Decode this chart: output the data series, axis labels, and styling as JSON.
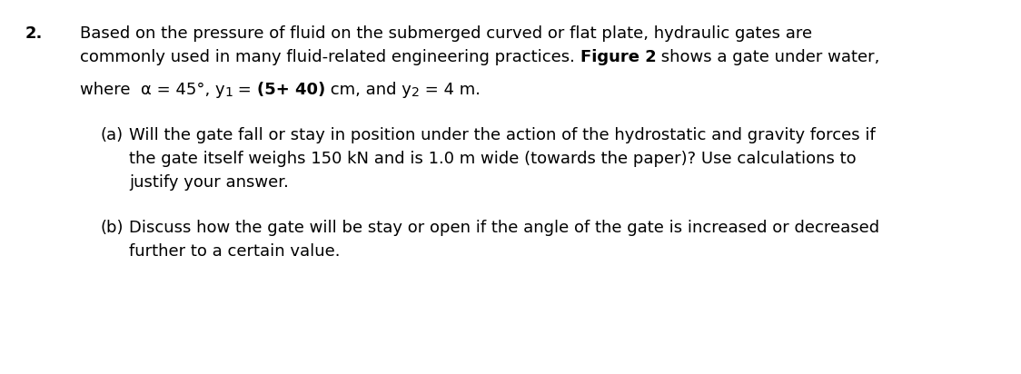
{
  "background_color": "#ffffff",
  "figsize": [
    11.24,
    4.12
  ],
  "dpi": 100,
  "font_size": 13.0,
  "font_family": "DejaVu Sans",
  "text_color": "#000000",
  "q_num": "2.",
  "line1": "Based on the pressure of fluid on the submerged curved or flat plate, hydraulic gates are",
  "line2_pre": "commonly used in many fluid-related engineering practices. ",
  "line2_bold": "Figure 2",
  "line2_post": " shows a gate under water,",
  "line3_pre": "where  α = 45°, y",
  "line3_sub1": "1",
  "line3_mid": " = ",
  "line3_bold": "(5+ 40)",
  "line3_post": " cm, and y",
  "line3_sub2": "2",
  "line3_end": " = 4 m.",
  "part_a_label": "(a)",
  "part_a_1": "Will the gate fall or stay in position under the action of the hydrostatic and gravity forces if",
  "part_a_2": "the gate itself weighs 150 kN and is 1.0 m wide (towards the paper)? Use calculations to",
  "part_a_3": "justify your answer.",
  "part_b_label": "(b)",
  "part_b_1": "Discuss how the gate will be stay or open if the angle of the gate is increased or decreased",
  "part_b_2": "further to a certain value."
}
